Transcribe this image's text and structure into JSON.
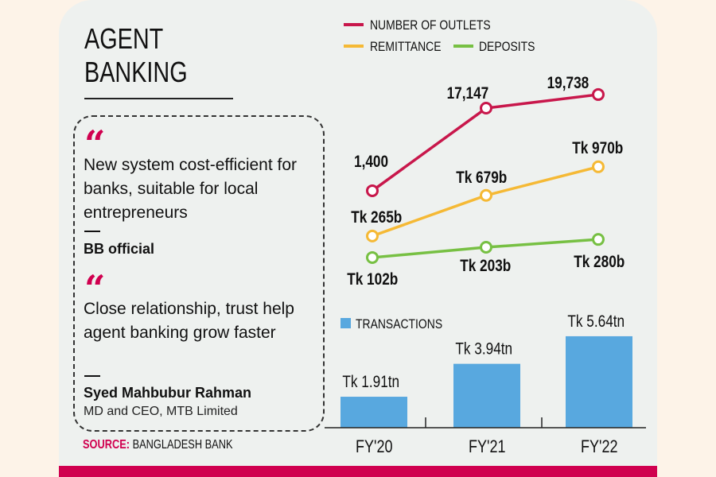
{
  "title_line1": "AGENT",
  "title_line2": "BANKING",
  "quotes": [
    {
      "text": "New system cost-efficient for banks, suitable for local entrepreneurs",
      "author": "BB official",
      "role": ""
    },
    {
      "text": "Close relationship, trust help agent banking grow faster",
      "author": "Syed Mahbubur Rahman",
      "role": "MD and CEO, MTB Limited"
    }
  ],
  "source_label": "SOURCE:",
  "source_value": "BANGLADESH BANK",
  "colors": {
    "outlets": "#c8174b",
    "remittance": "#f5b935",
    "deposits": "#77c043",
    "transactions": "#58a8df",
    "accent": "#d0004f"
  },
  "chart_data": [
    {
      "type": "line",
      "categories": [
        "FY'20",
        "FY'21",
        "FY'22"
      ],
      "series": [
        {
          "name": "NUMBER OF OUTLETS",
          "values": [
            1400,
            17147,
            19738
          ],
          "labels": [
            "1,400",
            "17,147",
            "19,738"
          ]
        },
        {
          "name": "REMITTANCE",
          "values": [
            265,
            679,
            970
          ],
          "labels": [
            "Tk 265b",
            "Tk 679b",
            "Tk 970b"
          ]
        },
        {
          "name": "DEPOSITS",
          "values": [
            102,
            203,
            280
          ],
          "labels": [
            "Tk 102b",
            "Tk 203b",
            "Tk 280b"
          ]
        }
      ],
      "legend": "top"
    },
    {
      "type": "bar",
      "categories": [
        "FY'20",
        "FY'21",
        "FY'22"
      ],
      "series": [
        {
          "name": "TRANSACTIONS",
          "values": [
            1.91,
            3.94,
            5.64
          ],
          "labels": [
            "Tk 1.91tn",
            "Tk 3.94tn",
            "Tk 5.64tn"
          ]
        }
      ],
      "legend": "top-left"
    }
  ]
}
